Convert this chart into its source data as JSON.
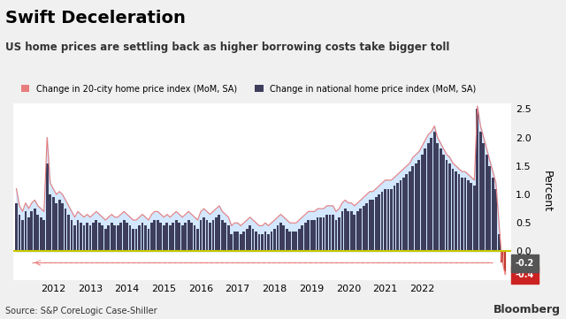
{
  "title": "Swift Deceleration",
  "subtitle": "US home prices are settling back as higher borrowing costs take bigger toll",
  "legend_labels": [
    "Change in 20-city home price index (MoM, SA)",
    "Change in national home price index (MoM, SA)"
  ],
  "ylabel": "Percent",
  "source": "Source: S&P CoreLogic Case-Shiller",
  "watermark": "Bloomberg",
  "ylim": [
    -0.5,
    2.6
  ],
  "yticks": [
    -0.4,
    -0.2,
    0.0,
    0.5,
    1.0,
    1.5,
    2.0,
    2.5
  ],
  "background_color": "#f0f0f0",
  "plot_bg": "#ffffff",
  "bar_color": "#3d3d5c",
  "area_fill_color": "#cce5ff",
  "area_line_color": "#e87d7d",
  "zero_line_color": "#c8c800",
  "annotation_line_color": "#e87d7d",
  "national_data": [
    0.85,
    0.65,
    0.55,
    0.7,
    0.6,
    0.7,
    0.75,
    0.65,
    0.6,
    0.55,
    1.55,
    1.0,
    0.95,
    0.85,
    0.9,
    0.85,
    0.75,
    0.65,
    0.55,
    0.45,
    0.55,
    0.5,
    0.45,
    0.5,
    0.45,
    0.5,
    0.55,
    0.5,
    0.45,
    0.4,
    0.45,
    0.5,
    0.45,
    0.45,
    0.5,
    0.55,
    0.5,
    0.45,
    0.4,
    0.4,
    0.45,
    0.5,
    0.45,
    0.4,
    0.5,
    0.55,
    0.55,
    0.5,
    0.45,
    0.5,
    0.45,
    0.5,
    0.55,
    0.5,
    0.45,
    0.5,
    0.55,
    0.5,
    0.45,
    0.4,
    0.55,
    0.6,
    0.55,
    0.5,
    0.55,
    0.6,
    0.65,
    0.55,
    0.5,
    0.45,
    0.3,
    0.35,
    0.35,
    0.3,
    0.35,
    0.4,
    0.45,
    0.4,
    0.35,
    0.3,
    0.3,
    0.35,
    0.3,
    0.35,
    0.4,
    0.45,
    0.5,
    0.45,
    0.4,
    0.35,
    0.35,
    0.35,
    0.4,
    0.45,
    0.5,
    0.55,
    0.55,
    0.55,
    0.6,
    0.6,
    0.6,
    0.65,
    0.65,
    0.65,
    0.55,
    0.6,
    0.7,
    0.75,
    0.7,
    0.7,
    0.65,
    0.7,
    0.75,
    0.8,
    0.85,
    0.9,
    0.9,
    0.95,
    1.0,
    1.05,
    1.1,
    1.1,
    1.1,
    1.15,
    1.2,
    1.25,
    1.3,
    1.35,
    1.4,
    1.5,
    1.55,
    1.6,
    1.7,
    1.8,
    1.9,
    2.0,
    2.1,
    1.9,
    1.8,
    1.7,
    1.6,
    1.55,
    1.45,
    1.4,
    1.35,
    1.3,
    1.3,
    1.25,
    1.2,
    1.15,
    2.5,
    2.1,
    1.9,
    1.7,
    1.5,
    1.3,
    1.1,
    0.3,
    -0.2,
    -0.35
  ],
  "city20_data": [
    1.1,
    0.8,
    0.7,
    0.85,
    0.75,
    0.85,
    0.9,
    0.8,
    0.75,
    0.7,
    2.0,
    1.2,
    1.1,
    1.0,
    1.05,
    1.0,
    0.9,
    0.8,
    0.7,
    0.6,
    0.7,
    0.65,
    0.6,
    0.65,
    0.6,
    0.65,
    0.7,
    0.65,
    0.6,
    0.55,
    0.6,
    0.65,
    0.6,
    0.6,
    0.65,
    0.7,
    0.65,
    0.6,
    0.55,
    0.55,
    0.6,
    0.65,
    0.6,
    0.55,
    0.65,
    0.7,
    0.7,
    0.65,
    0.6,
    0.65,
    0.6,
    0.65,
    0.7,
    0.65,
    0.6,
    0.65,
    0.7,
    0.65,
    0.6,
    0.55,
    0.7,
    0.75,
    0.7,
    0.65,
    0.7,
    0.75,
    0.8,
    0.7,
    0.65,
    0.6,
    0.45,
    0.5,
    0.5,
    0.45,
    0.5,
    0.55,
    0.6,
    0.55,
    0.5,
    0.45,
    0.45,
    0.5,
    0.45,
    0.5,
    0.55,
    0.6,
    0.65,
    0.6,
    0.55,
    0.5,
    0.5,
    0.5,
    0.55,
    0.6,
    0.65,
    0.7,
    0.7,
    0.7,
    0.75,
    0.75,
    0.75,
    0.8,
    0.8,
    0.8,
    0.7,
    0.75,
    0.85,
    0.9,
    0.85,
    0.85,
    0.8,
    0.85,
    0.9,
    0.95,
    1.0,
    1.05,
    1.05,
    1.1,
    1.15,
    1.2,
    1.25,
    1.25,
    1.25,
    1.3,
    1.35,
    1.4,
    1.45,
    1.5,
    1.55,
    1.65,
    1.7,
    1.75,
    1.85,
    1.95,
    2.05,
    2.1,
    2.2,
    2.0,
    1.9,
    1.8,
    1.7,
    1.65,
    1.55,
    1.5,
    1.45,
    1.4,
    1.4,
    1.35,
    1.3,
    1.25,
    2.55,
    2.2,
    2.0,
    1.8,
    1.6,
    1.4,
    1.2,
    0.5,
    -0.15,
    -0.4
  ]
}
